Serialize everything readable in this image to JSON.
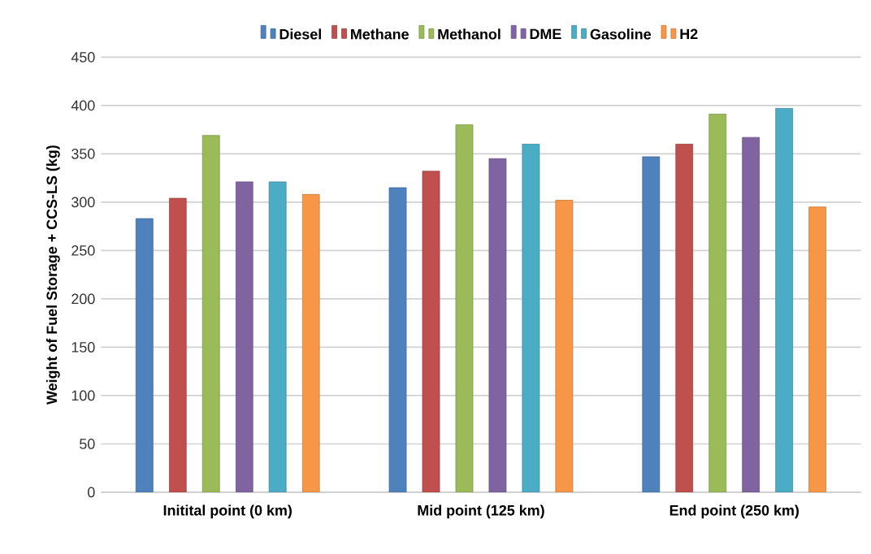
{
  "chart_data": {
    "type": "bar",
    "ylabel": "Weight of Fuel Storage + CCS-LS  (kg)",
    "categories": [
      "Initital point (0 km)",
      "Mid point (125 km)",
      "End point (250 km)"
    ],
    "series": [
      {
        "name": "Diesel",
        "color": "#4f81bd",
        "values": [
          283,
          315,
          347
        ]
      },
      {
        "name": "Methane",
        "color": "#c0504d",
        "values": [
          304,
          332,
          360
        ]
      },
      {
        "name": "Methanol",
        "color": "#9bbb59",
        "values": [
          369,
          380,
          391
        ]
      },
      {
        "name": "DME",
        "color": "#8064a2",
        "values": [
          321,
          345,
          367
        ]
      },
      {
        "name": "Gasoline",
        "color": "#4bacc6",
        "values": [
          321,
          360,
          397
        ]
      },
      {
        "name": "H2",
        "color": "#f79646",
        "values": [
          308,
          302,
          295
        ]
      }
    ],
    "ylim": [
      0,
      450
    ],
    "yticks": [
      0,
      50,
      100,
      150,
      200,
      250,
      300,
      350,
      400,
      450
    ],
    "grid": "y",
    "legend": "top"
  }
}
